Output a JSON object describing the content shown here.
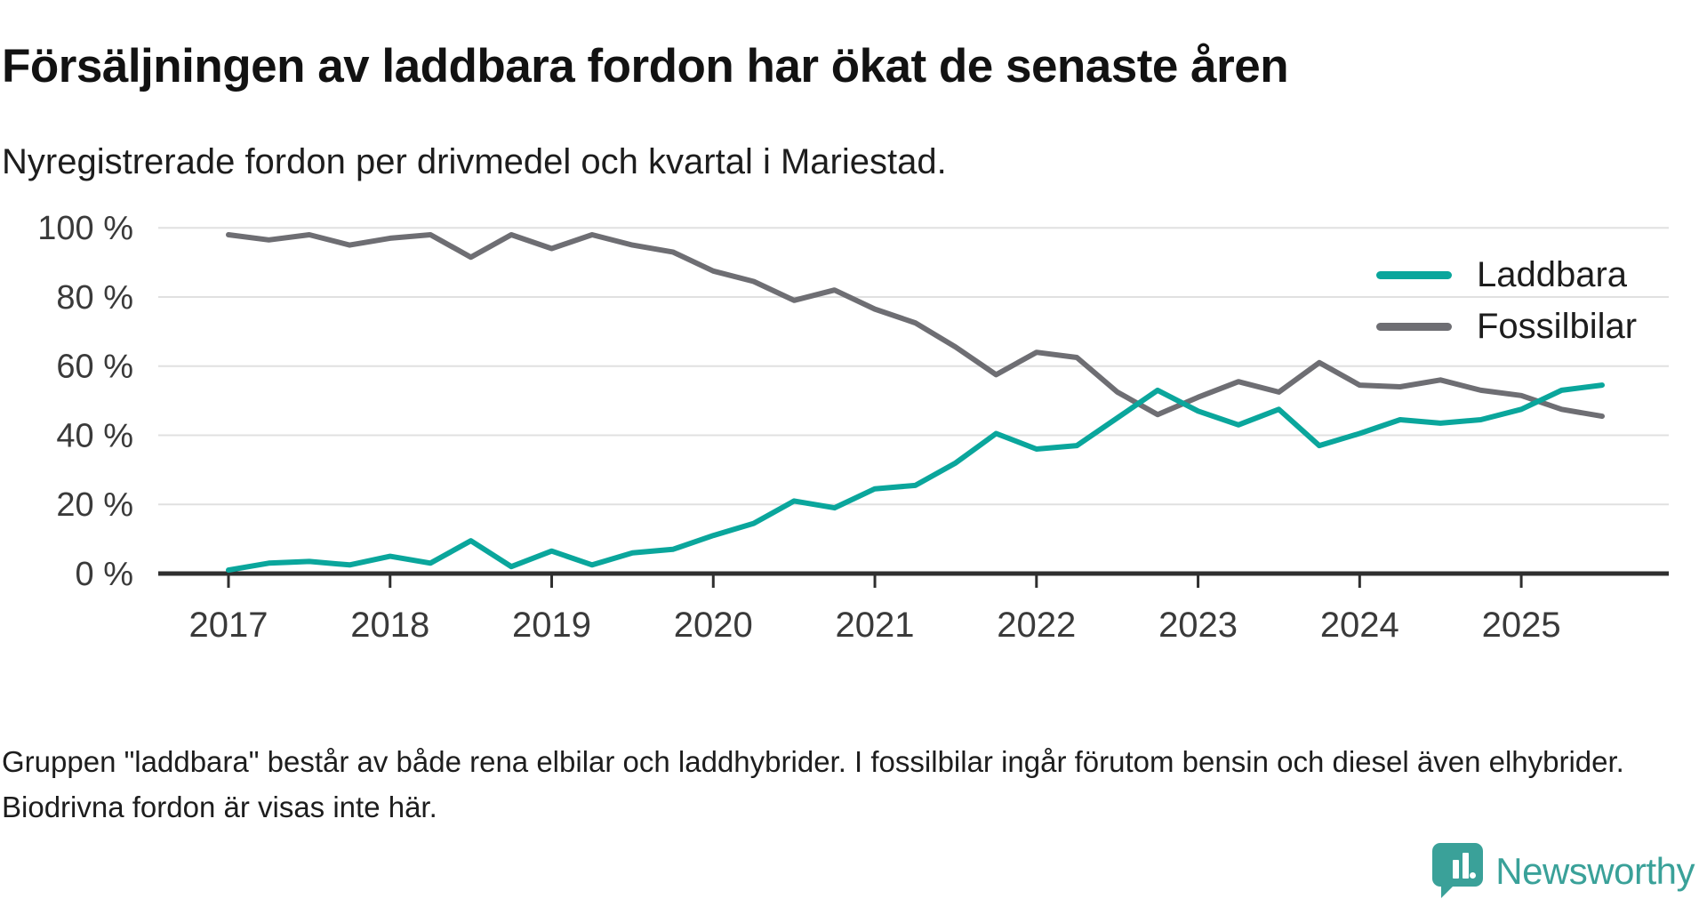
{
  "title": "Försäljningen av laddbara fordon har ökat de senaste åren",
  "subtitle": "Nyregistrerade fordon per drivmedel och kvartal i Mariestad.",
  "footnote": "Gruppen \"laddbara\" består av både rena elbilar och laddhybrider. I fossilbilar ingår förutom bensin och diesel även elhybrider. Biodrivna fordon är visas inte här.",
  "branding": {
    "name": "Newsworthy",
    "color": "#3aa199"
  },
  "colors": {
    "laddbara": "#0aa69c",
    "fossilbilar": "#6e6e73",
    "gridline": "#e0e0e0",
    "axis": "#2f2f2f",
    "tick_label": "#3a3a3a"
  },
  "chart_data": {
    "type": "line",
    "title": "Försäljningen av laddbara fordon har ökat de senaste åren",
    "subtitle": "Nyregistrerade fordon per drivmedel och kvartal i Mariestad.",
    "xlabel": "",
    "ylabel": "",
    "unit": "%",
    "ylim": [
      0,
      100
    ],
    "grid": true,
    "legend_position": "top-right",
    "categories": [
      "2017 Q1",
      "2017 Q2",
      "2017 Q3",
      "2017 Q4",
      "2018 Q1",
      "2018 Q2",
      "2018 Q3",
      "2018 Q4",
      "2019 Q1",
      "2019 Q2",
      "2019 Q3",
      "2019 Q4",
      "2020 Q1",
      "2020 Q2",
      "2020 Q3",
      "2020 Q4",
      "2021 Q1",
      "2021 Q2",
      "2021 Q3",
      "2021 Q4",
      "2022 Q1",
      "2022 Q2",
      "2022 Q3",
      "2022 Q4",
      "2023 Q1",
      "2023 Q2",
      "2023 Q3",
      "2023 Q4",
      "2024 Q1",
      "2024 Q2",
      "2024 Q3",
      "2024 Q4",
      "2025 Q1",
      "2025 Q2",
      "2025 Q3"
    ],
    "series": [
      {
        "name": "Laddbara",
        "color": "#0aa69c",
        "values": [
          1,
          3,
          3.5,
          2.5,
          5,
          3,
          9.5,
          2,
          6.5,
          2.5,
          6,
          7,
          11,
          14.5,
          21,
          19,
          24.5,
          25.5,
          32,
          40.5,
          36,
          37,
          45,
          53,
          47,
          43,
          47.5,
          37,
          40.5,
          44.5,
          43.5,
          44.5,
          47.5,
          53,
          54.5
        ]
      },
      {
        "name": "Fossilbilar",
        "color": "#6e6e73",
        "values": [
          98,
          96.5,
          98,
          95,
          97,
          98,
          91.5,
          98,
          94,
          98,
          95,
          93,
          87.5,
          84.5,
          79,
          82,
          76.5,
          72.5,
          65.5,
          57.5,
          64,
          62.5,
          52.5,
          46,
          51,
          55.5,
          52.5,
          61,
          54.5,
          54,
          56,
          53,
          51.5,
          47.5,
          45.5
        ]
      }
    ],
    "y_axis_ticks": [
      {
        "value": 100,
        "label": "100 %"
      },
      {
        "value": 80,
        "label": "80 %"
      },
      {
        "value": 60,
        "label": "60 %"
      },
      {
        "value": 40,
        "label": "40 %"
      },
      {
        "value": 20,
        "label": "20 %"
      },
      {
        "value": 0,
        "label": "0 %"
      }
    ],
    "x_axis_ticks": [
      {
        "label": "2017",
        "quarter_index": 0
      },
      {
        "label": "2018",
        "quarter_index": 4
      },
      {
        "label": "2019",
        "quarter_index": 8
      },
      {
        "label": "2020",
        "quarter_index": 12
      },
      {
        "label": "2021",
        "quarter_index": 16
      },
      {
        "label": "2022",
        "quarter_index": 20
      },
      {
        "label": "2023",
        "quarter_index": 24
      },
      {
        "label": "2024",
        "quarter_index": 28
      },
      {
        "label": "2025",
        "quarter_index": 32
      }
    ]
  }
}
